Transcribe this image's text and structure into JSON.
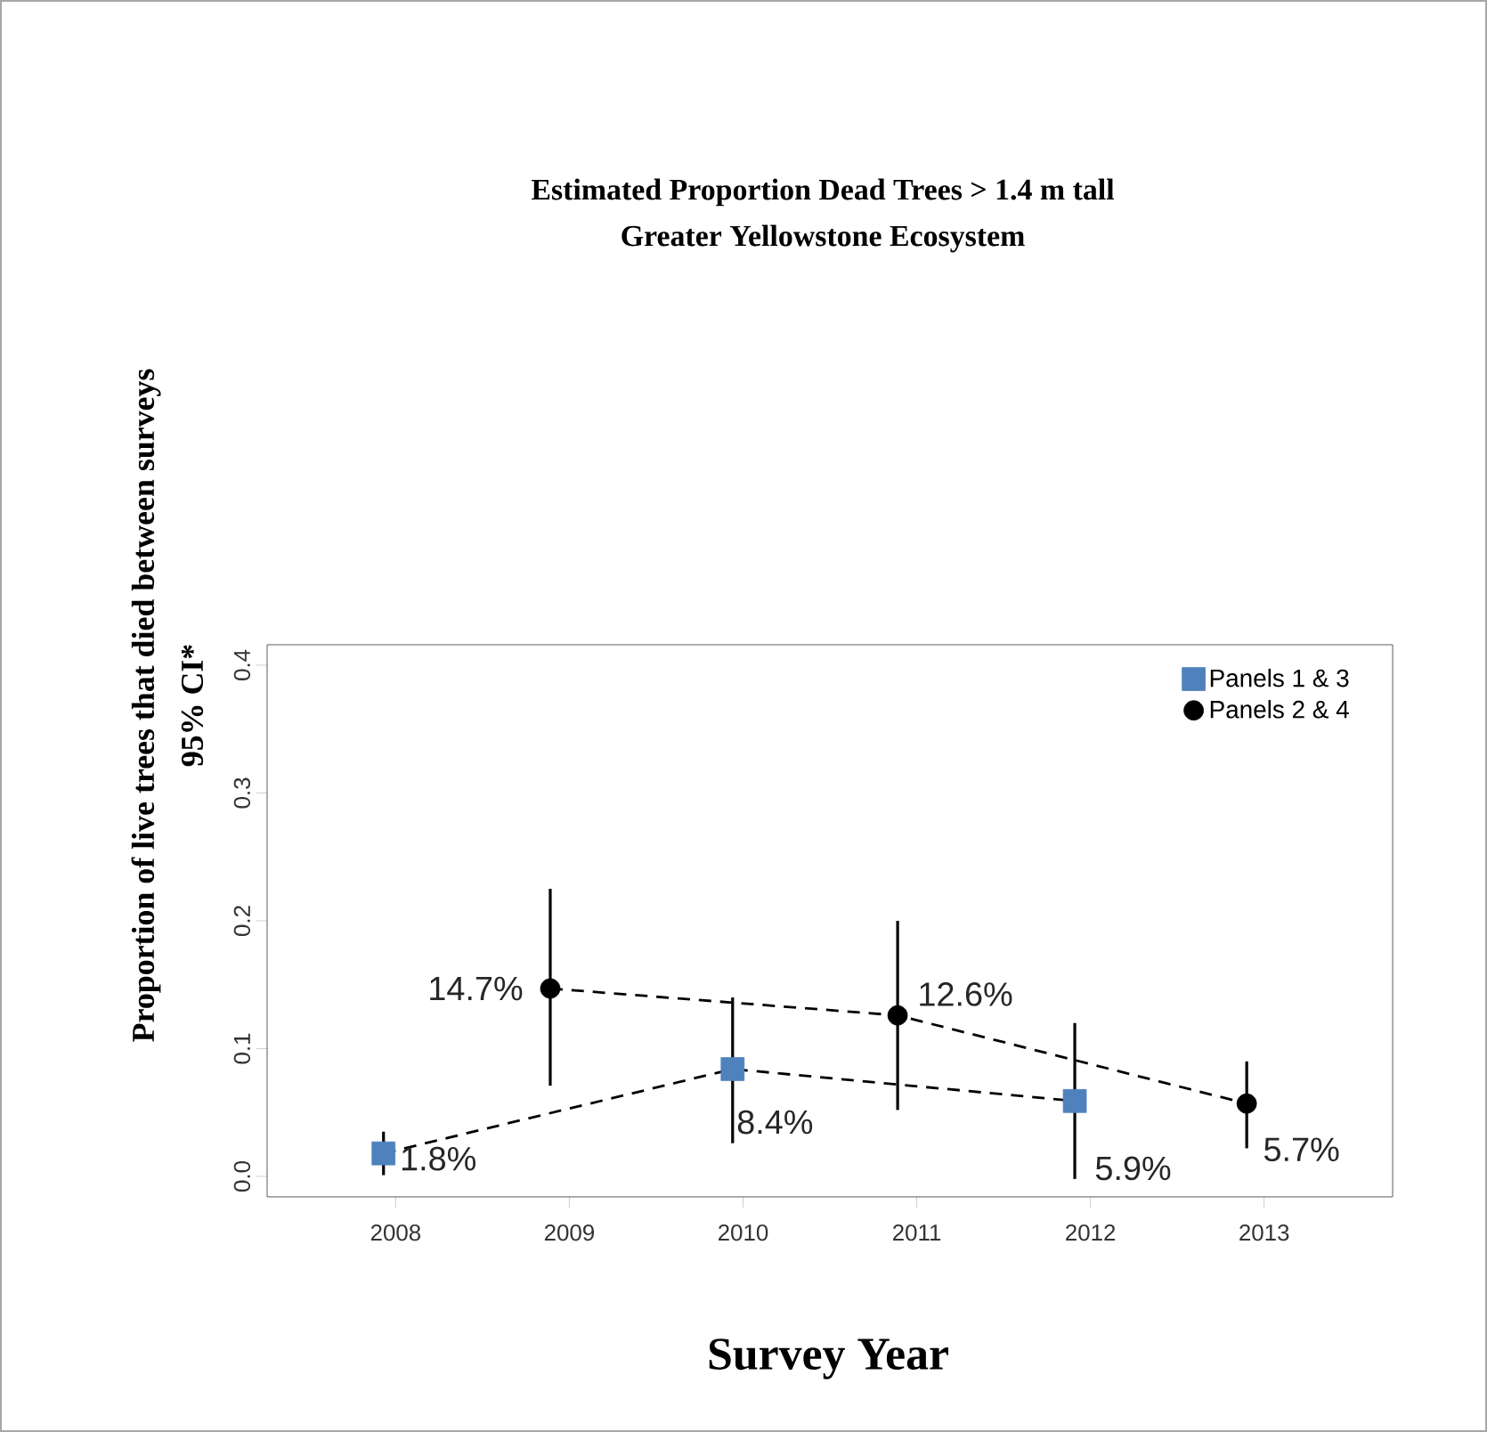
{
  "chart_data": {
    "type": "scatter",
    "title": "Estimated Proportion Dead Trees > 1.4 m tall",
    "subtitle": "Greater Yellowstone Ecosystem",
    "xlabel": "Survey Year",
    "ylabel": "Proportion of live trees that died between surveys",
    "annotations": [
      "95% CI*"
    ],
    "xlim": [
      2007.26,
      2013.74
    ],
    "ylim": [
      -0.016,
      0.416
    ],
    "xticks": [
      2008,
      2009,
      2010,
      2011,
      2012,
      2013
    ],
    "yticks": [
      {
        "value": 0,
        "label": "0.0"
      },
      0.1,
      0.2,
      0.3,
      0.4
    ],
    "legend": "top right",
    "grid": false,
    "line_style": "dashed",
    "series": [
      {
        "name": "Panels 1 & 3",
        "color": "#4f81bd",
        "marker": "square",
        "x": [
          2007.93,
          2009.94,
          2011.91
        ],
        "values": [
          0.018,
          0.084,
          0.059
        ],
        "errors": [
          [
            0.001,
            0.035
          ],
          [
            0.026,
            0.14
          ],
          [
            -0.002,
            0.12
          ]
        ],
        "value_labels": [
          "1.8%",
          "8.4%",
          "5.9%"
        ]
      },
      {
        "name": "Panels 2 & 4",
        "color": "#000000",
        "marker": "circle",
        "x": [
          2008.89,
          2010.89,
          2012.9
        ],
        "values": [
          0.147,
          0.126,
          0.057
        ],
        "errors": [
          [
            0.071,
            0.225
          ],
          [
            0.052,
            0.2
          ],
          [
            0.022,
            0.09
          ]
        ],
        "value_labels": [
          "14.7%",
          "12.6%",
          "5.7%"
        ]
      }
    ]
  }
}
